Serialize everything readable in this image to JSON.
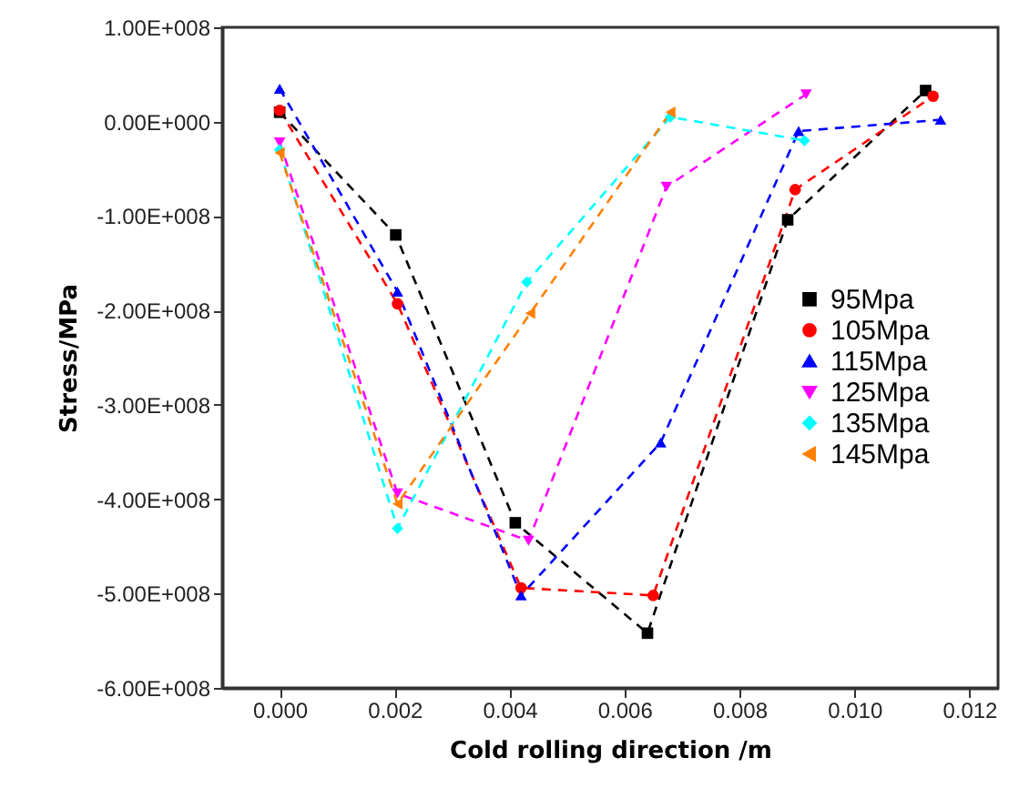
{
  "chart_data": {
    "type": "line",
    "xlabel": "Cold rolling direction /m",
    "ylabel": "Stress/MPa",
    "xlim": [
      -0.001,
      0.0125
    ],
    "ylim": [
      -600000000,
      100000000
    ],
    "xticks": [
      {
        "value": 0,
        "label": "0.000"
      },
      {
        "value": 0.002,
        "label": "0.002"
      },
      {
        "value": 0.004,
        "label": "0.004"
      },
      {
        "value": 0.006,
        "label": "0.006"
      },
      {
        "value": 0.008,
        "label": "0.008"
      },
      {
        "value": 0.01,
        "label": "0.010"
      },
      {
        "value": 0.012,
        "label": "0.012"
      }
    ],
    "yticks": [
      {
        "value": -600000000,
        "label": "-6.00E+008"
      },
      {
        "value": -500000000,
        "label": "-5.00E+008"
      },
      {
        "value": -400000000,
        "label": "-4.00E+008"
      },
      {
        "value": -300000000,
        "label": "-3.00E+008"
      },
      {
        "value": -200000000,
        "label": "-2.00E+008"
      },
      {
        "value": -100000000,
        "label": "-1.00E+008"
      },
      {
        "value": 0,
        "label": "0.00E+000"
      },
      {
        "value": 100000000,
        "label": "1.00E+008"
      }
    ],
    "grid": false,
    "legend": "right",
    "line_style": "dashed",
    "series": [
      {
        "name": "95Mpa",
        "color": "#000000",
        "marker": "square",
        "x": [
          0,
          0.00202,
          0.0041,
          0.0064,
          0.00884,
          0.01124
        ],
        "values": [
          10000000,
          -120000000,
          -425000000,
          -542000000,
          -104000000,
          33000000
        ]
      },
      {
        "name": "105Mpa",
        "color": "#ff0000",
        "marker": "circle",
        "x": [
          0,
          0.00205,
          0.0042,
          0.0065,
          0.00897,
          0.01137
        ],
        "values": [
          12000000,
          -193000000,
          -494000000,
          -502000000,
          -72000000,
          27000000
        ]
      },
      {
        "name": "115Mpa",
        "color": "#0000ff",
        "marker": "triangle-up",
        "x": [
          0,
          0.00205,
          0.0042,
          0.00663,
          0.00903,
          0.0115
        ],
        "values": [
          35000000,
          -180000000,
          -502000000,
          -340000000,
          -10000000,
          2000000
        ]
      },
      {
        "name": "125Mpa",
        "color": "#ff00ff",
        "marker": "triangle-down",
        "x": [
          0,
          0.00205,
          0.00433,
          0.00673,
          0.00916
        ],
        "values": [
          -22000000,
          -394000000,
          -444000000,
          -69000000,
          29000000
        ]
      },
      {
        "name": "135Mpa",
        "color": "#00ffff",
        "marker": "diamond",
        "x": [
          0,
          0.00205,
          0.0043,
          0.0068,
          0.00913
        ],
        "values": [
          -30000000,
          -431000000,
          -170000000,
          5000000,
          -20000000
        ]
      },
      {
        "name": "145Mpa",
        "color": "#ff8000",
        "marker": "triangle-left",
        "x": [
          0,
          0.00205,
          0.00436,
          0.0068
        ],
        "values": [
          -33000000,
          -405000000,
          -203000000,
          10000000
        ]
      }
    ]
  }
}
